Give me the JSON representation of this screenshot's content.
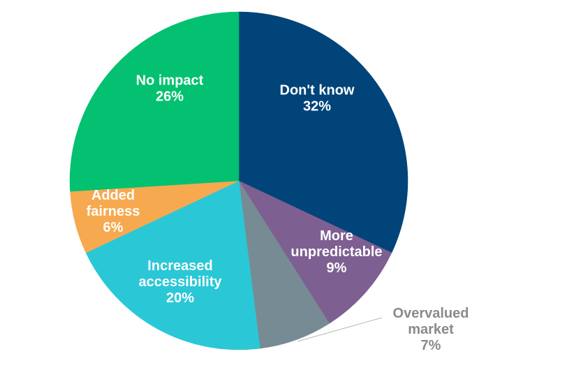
{
  "chart_data": {
    "type": "pie",
    "slices": [
      {
        "label_lines": [
          "Don't know"
        ],
        "value": 32,
        "value_label": "32%",
        "color": "#004479",
        "label_position": "inside"
      },
      {
        "label_lines": [
          "More",
          "unpredictable"
        ],
        "value": 9,
        "value_label": "9%",
        "color": "#7e5f92",
        "label_position": "inside"
      },
      {
        "label_lines": [
          "Overvalued",
          "market"
        ],
        "value": 7,
        "value_label": "7%",
        "color": "#778b94",
        "label_position": "outside"
      },
      {
        "label_lines": [
          "Increased",
          "accessibility"
        ],
        "value": 20,
        "value_label": "20%",
        "color": "#2ac8d6",
        "label_position": "inside"
      },
      {
        "label_lines": [
          "Added",
          "fairness"
        ],
        "value": 6,
        "value_label": "6%",
        "color": "#f7a94f",
        "label_position": "inside"
      },
      {
        "label_lines": [
          "No impact"
        ],
        "value": 26,
        "value_label": "26%",
        "color": "#03c170",
        "label_position": "inside"
      }
    ],
    "start_direction": "top",
    "direction": "clockwise",
    "legend": "none",
    "text_color_inside": "#ffffff",
    "text_color_outside": "#8a8a8a"
  }
}
